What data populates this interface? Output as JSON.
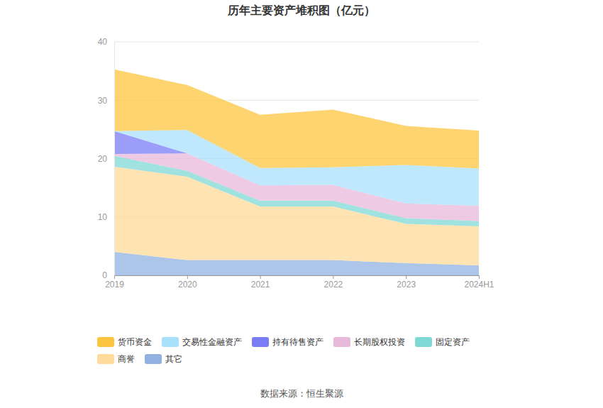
{
  "chart_data": {
    "type": "area",
    "title": "历年主要资产堆积图（亿元）",
    "source": "数据来源：恒生聚源",
    "categories": [
      "2019",
      "2020",
      "2021",
      "2022",
      "2023",
      "2024H1"
    ],
    "stacked": true,
    "grid": true,
    "legend": "bottom",
    "ylim": [
      0,
      40
    ],
    "yticks": [
      0,
      10,
      20,
      30,
      40
    ],
    "series": [
      {
        "name": "货币资金",
        "color": "#fcc53f",
        "values": [
          10.6,
          7.7,
          9.1,
          9.9,
          6.7,
          6.5
        ]
      },
      {
        "name": "交易性金融资产",
        "color": "#a9e0fb",
        "values": [
          0,
          4.0,
          3.0,
          3.0,
          6.6,
          6.4
        ]
      },
      {
        "name": "持有待售资产",
        "color": "#7a7cf5",
        "values": [
          3.9,
          0,
          0,
          0,
          0,
          0
        ]
      },
      {
        "name": "长期股权投资",
        "color": "#e8b8db",
        "values": [
          0.3,
          3.0,
          2.6,
          2.7,
          2.5,
          2.6
        ]
      },
      {
        "name": "固定资产",
        "color": "#80d8d6",
        "values": [
          1.9,
          1.0,
          1.0,
          1.0,
          1.0,
          0.9
        ]
      },
      {
        "name": "商誉",
        "color": "#fedb9a",
        "values": [
          14.6,
          14.3,
          9.2,
          9.2,
          6.7,
          6.7
        ]
      },
      {
        "name": "其它",
        "color": "#91b1e0",
        "values": [
          4.0,
          2.6,
          2.6,
          2.6,
          2.1,
          1.7
        ]
      }
    ]
  }
}
